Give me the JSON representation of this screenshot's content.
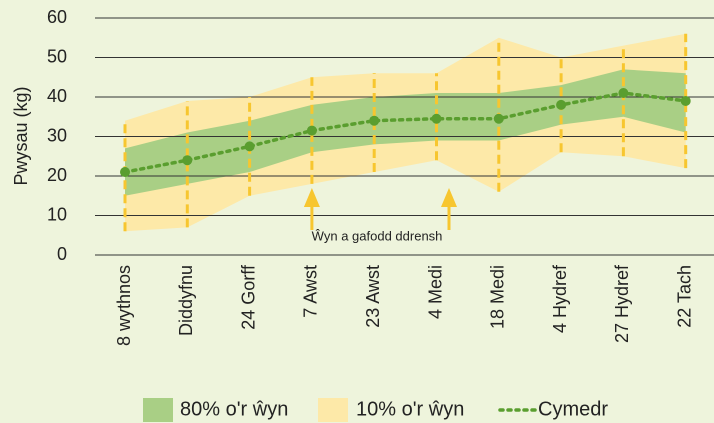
{
  "chart_data": {
    "type": "line",
    "y_label": "Pwysau (kg)",
    "annotation": "Ŵyn a gafodd ddrensh",
    "categories": [
      "8 wythnos",
      "Diddyfnu",
      "24 Gorff",
      "7 Awst",
      "23 Awst",
      "4 Medi",
      "18 Medi",
      "4 Hydref",
      "27 Hydref",
      "22 Tach"
    ],
    "series": [
      {
        "name": "80% o'r ŵyn",
        "color": "#a9cf85",
        "lower": [
          15,
          18,
          21,
          26,
          28,
          29,
          29,
          33,
          35,
          31
        ],
        "upper": [
          27,
          31,
          34,
          38,
          40,
          41,
          41,
          43,
          47,
          46
        ]
      },
      {
        "name": "10% o'r ŵyn",
        "color": "#fde9a8",
        "lower": [
          6,
          7,
          15,
          18,
          21,
          24,
          16,
          26,
          25,
          22
        ],
        "upper": [
          34,
          39,
          40,
          45,
          46,
          46,
          55,
          50,
          53,
          56
        ]
      },
      {
        "name": "Cymedr",
        "color": "#5a9e2f",
        "values": [
          21,
          24,
          27.5,
          31.5,
          34,
          34.5,
          34.5,
          38,
          41,
          39
        ]
      }
    ],
    "ylim": [
      0,
      60
    ],
    "yticks": [
      0,
      10,
      20,
      30,
      40,
      50,
      60
    ],
    "grid": true
  }
}
